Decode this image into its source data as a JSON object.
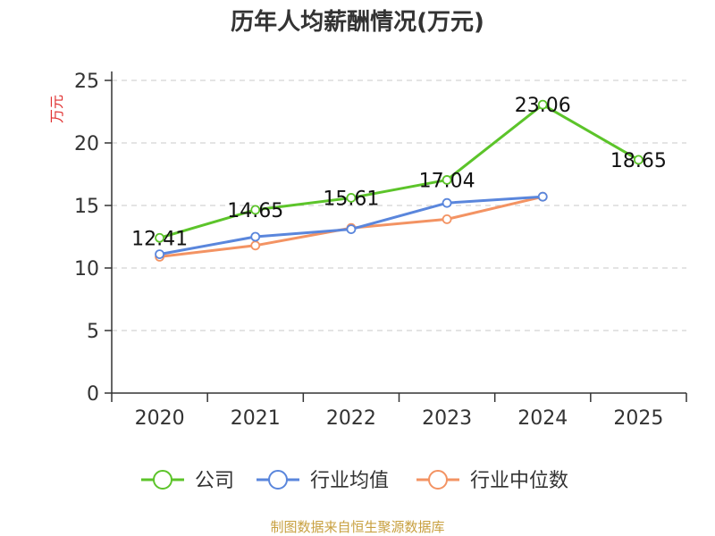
{
  "chart_data": {
    "type": "line",
    "title": "历年人均薪酬情况(万元)",
    "ylabel": "万元",
    "xlabel": "",
    "ylim": [
      0,
      25
    ],
    "yticks": [
      0,
      5,
      10,
      15,
      20,
      25
    ],
    "categories": [
      "2020",
      "2021",
      "2022",
      "2023",
      "2024",
      "2025"
    ],
    "series": [
      {
        "name": "公司",
        "color": "#5cc42a",
        "values": [
          12.41,
          14.65,
          15.61,
          17.04,
          23.06,
          18.65
        ],
        "labels": [
          "12.41",
          "14.65",
          "15.61",
          "17.04",
          "23.06",
          "18.65"
        ]
      },
      {
        "name": "行业均值",
        "color": "#5a86dc",
        "values": [
          11.1,
          12.5,
          13.1,
          15.2,
          15.7,
          null
        ]
      },
      {
        "name": "行业中位数",
        "color": "#f39363",
        "values": [
          10.9,
          11.8,
          13.2,
          13.9,
          15.7,
          null
        ]
      }
    ],
    "grid": true,
    "legend_position": "bottom",
    "source": "制图数据来自恒生聚源数据库"
  }
}
